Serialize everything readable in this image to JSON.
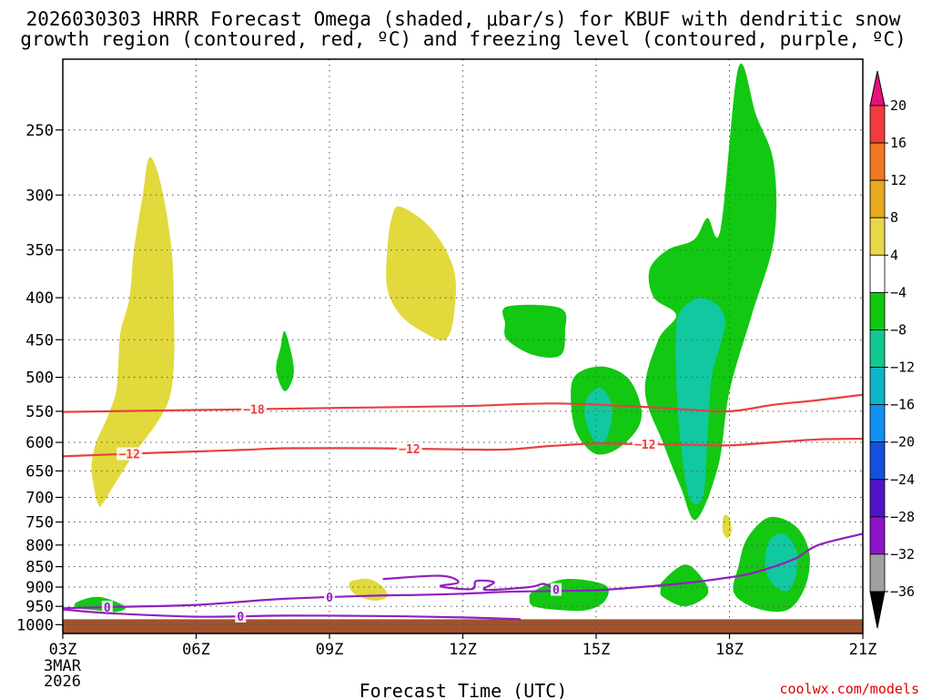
{
  "chart_data": {
    "type": "contour-time-height",
    "title_line1": "2026030303 HRRR Forecast Omega (shaded, μbar/s) for KBUF with dendritic snow",
    "title_line2": "growth region (contoured, red, ºC) and freezing level (contoured, purple, ºC)",
    "xlabel": "Forecast Time (UTC)",
    "x_ticks": [
      "03Z",
      "06Z",
      "09Z",
      "12Z",
      "15Z",
      "18Z",
      "21Z"
    ],
    "x_tick_hours": [
      3,
      6,
      9,
      12,
      15,
      18,
      21
    ],
    "xlim": [
      3,
      21
    ],
    "date_label_line1": "3MAR",
    "date_label_line2": "2026",
    "y_ticks": [
      250,
      300,
      350,
      400,
      450,
      500,
      550,
      600,
      650,
      700,
      750,
      800,
      850,
      900,
      950,
      1000
    ],
    "ylim": [
      1025,
      205
    ],
    "y_scale": "log-pressure",
    "grid": true,
    "colorbar": {
      "tick_labels": [
        "20",
        "16",
        "12",
        "8",
        "4",
        "−4",
        "−8",
        "−12",
        "−16",
        "−20",
        "−24",
        "−28",
        "−32",
        "−36"
      ],
      "colors": [
        "#e8107c",
        "#f03c3c",
        "#f07820",
        "#e8a820",
        "#e8d848",
        "#ffffff",
        "#10c810",
        "#10c890",
        "#10b4c8",
        "#1090f0",
        "#1450e0",
        "#5014c8",
        "#8c14c8",
        "#a0a0a0",
        "#000000"
      ]
    },
    "omega_regions": [
      {
        "value_color": "#e2d93c",
        "points": [
          [
            3.8,
            715
          ],
          [
            3.7,
            680
          ],
          [
            3.65,
            640
          ],
          [
            3.75,
            600
          ],
          [
            4.0,
            560
          ],
          [
            4.2,
            520
          ],
          [
            4.25,
            480
          ],
          [
            4.3,
            440
          ],
          [
            4.5,
            400
          ],
          [
            4.6,
            350
          ],
          [
            4.8,
            300
          ],
          [
            4.95,
            270
          ],
          [
            5.2,
            290
          ],
          [
            5.45,
            350
          ],
          [
            5.5,
            420
          ],
          [
            5.5,
            480
          ],
          [
            5.4,
            530
          ],
          [
            5.1,
            570
          ],
          [
            4.6,
            620
          ],
          [
            4.2,
            670
          ],
          [
            3.9,
            712
          ]
        ]
      },
      {
        "value_color": "#e2d93c",
        "points": [
          [
            10.6,
            310
          ],
          [
            11.3,
            330
          ],
          [
            11.8,
            370
          ],
          [
            11.8,
            420
          ],
          [
            11.6,
            450
          ],
          [
            11.1,
            440
          ],
          [
            10.6,
            420
          ],
          [
            10.3,
            390
          ],
          [
            10.3,
            350
          ],
          [
            10.4,
            320
          ]
        ]
      },
      {
        "value_color": "#e2d93c",
        "points": [
          [
            9.5,
            885
          ],
          [
            9.9,
            880
          ],
          [
            10.2,
            900
          ],
          [
            10.3,
            925
          ],
          [
            10.0,
            935
          ],
          [
            9.6,
            920
          ],
          [
            9.45,
            900
          ]
        ]
      },
      {
        "value_color": "#e2d93c",
        "points": [
          [
            17.9,
            735
          ],
          [
            18.0,
            742
          ],
          [
            18.05,
            770
          ],
          [
            17.95,
            785
          ],
          [
            17.85,
            770
          ],
          [
            17.85,
            745
          ]
        ]
      },
      {
        "value_color": "#12c812",
        "points": [
          [
            8.0,
            440
          ],
          [
            8.2,
            490
          ],
          [
            8.0,
            520
          ],
          [
            7.8,
            490
          ],
          [
            7.9,
            460
          ]
        ]
      },
      {
        "value_color": "#12c812",
        "points": [
          [
            13.0,
            410
          ],
          [
            14.2,
            412
          ],
          [
            14.3,
            440
          ],
          [
            14.2,
            470
          ],
          [
            13.6,
            470
          ],
          [
            13.0,
            450
          ],
          [
            12.95,
            430
          ]
        ]
      },
      {
        "value_color": "#12c812",
        "points": [
          [
            14.5,
            500
          ],
          [
            15.1,
            485
          ],
          [
            15.7,
            500
          ],
          [
            16.0,
            540
          ],
          [
            15.95,
            575
          ],
          [
            15.5,
            610
          ],
          [
            15.0,
            620
          ],
          [
            14.6,
            590
          ],
          [
            14.45,
            550
          ]
        ]
      },
      {
        "value_color": "#12c812",
        "points": [
          [
            17.8,
            330
          ],
          [
            18.2,
            210
          ],
          [
            18.6,
            240
          ],
          [
            19.0,
            275
          ],
          [
            19.0,
            340
          ],
          [
            18.5,
            420
          ],
          [
            18.0,
            520
          ],
          [
            17.75,
            640
          ],
          [
            17.25,
            745
          ],
          [
            16.9,
            680
          ],
          [
            16.5,
            600
          ],
          [
            16.1,
            520
          ],
          [
            16.4,
            450
          ],
          [
            16.8,
            420
          ],
          [
            16.3,
            400
          ],
          [
            16.2,
            370
          ],
          [
            16.6,
            350
          ],
          [
            17.2,
            340
          ],
          [
            17.5,
            320
          ]
        ]
      },
      {
        "value_color": "#12c812",
        "points": [
          [
            16.5,
            885
          ],
          [
            17.0,
            845
          ],
          [
            17.4,
            880
          ],
          [
            17.5,
            920
          ],
          [
            17.0,
            950
          ],
          [
            16.5,
            925
          ],
          [
            16.45,
            905
          ]
        ]
      },
      {
        "value_color": "#12c812",
        "points": [
          [
            18.4,
            785
          ],
          [
            18.9,
            740
          ],
          [
            19.5,
            760
          ],
          [
            19.8,
            820
          ],
          [
            19.7,
            900
          ],
          [
            19.3,
            960
          ],
          [
            18.6,
            955
          ],
          [
            18.1,
            915
          ],
          [
            18.2,
            850
          ]
        ]
      },
      {
        "value_color": "#12c812",
        "points": [
          [
            13.6,
            910
          ],
          [
            14.3,
            880
          ],
          [
            15.2,
            895
          ],
          [
            15.2,
            935
          ],
          [
            14.8,
            960
          ],
          [
            14.2,
            960
          ],
          [
            13.6,
            950
          ],
          [
            13.5,
            930
          ]
        ]
      },
      {
        "value_color": "#12c812",
        "points": [
          [
            3.3,
            940
          ],
          [
            3.8,
            925
          ],
          [
            4.4,
            950
          ],
          [
            4.2,
            965
          ],
          [
            3.7,
            960
          ],
          [
            3.35,
            955
          ]
        ]
      },
      {
        "value_color": "#12c8a0",
        "points": [
          [
            16.9,
            415
          ],
          [
            17.4,
            400
          ],
          [
            17.9,
            425
          ],
          [
            17.6,
            500
          ],
          [
            17.5,
            600
          ],
          [
            17.4,
            700
          ],
          [
            17.1,
            700
          ],
          [
            16.9,
            600
          ],
          [
            16.8,
            500
          ],
          [
            16.8,
            440
          ]
        ]
      },
      {
        "value_color": "#12c8a0",
        "points": [
          [
            14.8,
            530
          ],
          [
            15.1,
            515
          ],
          [
            15.35,
            540
          ],
          [
            15.3,
            580
          ],
          [
            15.1,
            605
          ],
          [
            14.9,
            590
          ],
          [
            14.75,
            560
          ]
        ]
      },
      {
        "value_color": "#12c8a0",
        "points": [
          [
            18.9,
            790
          ],
          [
            19.2,
            775
          ],
          [
            19.5,
            810
          ],
          [
            19.5,
            870
          ],
          [
            19.3,
            910
          ],
          [
            18.95,
            890
          ],
          [
            18.8,
            840
          ]
        ]
      }
    ],
    "isotherms": [
      {
        "label": "−18",
        "color": "#e84040",
        "label_hour": 7.3,
        "points": [
          [
            3,
            551
          ],
          [
            5,
            549
          ],
          [
            7,
            547
          ],
          [
            9,
            545
          ],
          [
            12,
            542
          ],
          [
            14,
            538
          ],
          [
            16,
            543
          ],
          [
            17,
            547
          ],
          [
            18,
            550
          ],
          [
            19,
            540
          ],
          [
            20,
            533
          ],
          [
            21,
            525
          ]
        ]
      },
      {
        "label": "−12",
        "color": "#e84040",
        "label_hour": 4.5,
        "label_hour2": 10.8,
        "label_hour3": 16.1,
        "points": [
          [
            3,
            624
          ],
          [
            5,
            618
          ],
          [
            7,
            613
          ],
          [
            8,
            610
          ],
          [
            10,
            610
          ],
          [
            12,
            612
          ],
          [
            13,
            612
          ],
          [
            14,
            606
          ],
          [
            15,
            602
          ],
          [
            16,
            603
          ],
          [
            17,
            604
          ],
          [
            18,
            605
          ],
          [
            19,
            600
          ],
          [
            20,
            595
          ],
          [
            21,
            594
          ]
        ]
      },
      {
        "label": "0",
        "color": "#9020c0",
        "label_hour": 4.0,
        "label_hour2": 9.0,
        "points": [
          [
            3,
            955
          ],
          [
            4,
            952
          ],
          [
            6,
            946
          ],
          [
            8,
            930
          ],
          [
            10,
            922
          ],
          [
            11,
            920
          ],
          [
            12,
            917
          ],
          [
            13,
            912
          ],
          [
            14,
            910
          ],
          [
            15,
            908
          ],
          [
            16,
            900
          ],
          [
            17,
            890
          ],
          [
            18,
            876
          ],
          [
            18.5,
            866
          ],
          [
            19,
            850
          ],
          [
            19.5,
            830
          ],
          [
            20,
            800
          ],
          [
            21,
            775
          ]
        ]
      },
      {
        "label": "0",
        "color": "#9020c0",
        "label_hour": 7.0,
        "points": [
          [
            3,
            958
          ],
          [
            4,
            968
          ],
          [
            6,
            978
          ],
          [
            8,
            975
          ],
          [
            10,
            976
          ],
          [
            12,
            980
          ],
          [
            13.3,
            985
          ]
        ]
      },
      {
        "label": "0",
        "color": "#9020c0",
        "label_hour": 14.1,
        "points": [
          [
            10.2,
            880
          ],
          [
            11.5,
            872
          ],
          [
            11.9,
            888
          ],
          [
            11.5,
            898
          ],
          [
            12.2,
            905
          ],
          [
            12.3,
            885
          ],
          [
            12.7,
            888
          ],
          [
            12.5,
            907
          ],
          [
            13.5,
            900
          ],
          [
            13.8,
            892
          ],
          [
            14.0,
            900
          ],
          [
            14.2,
            912
          ]
        ]
      }
    ],
    "terrain_color": "#a0522d",
    "terrain_top_hpa": 985
  },
  "credit": "coolwx.com/models"
}
